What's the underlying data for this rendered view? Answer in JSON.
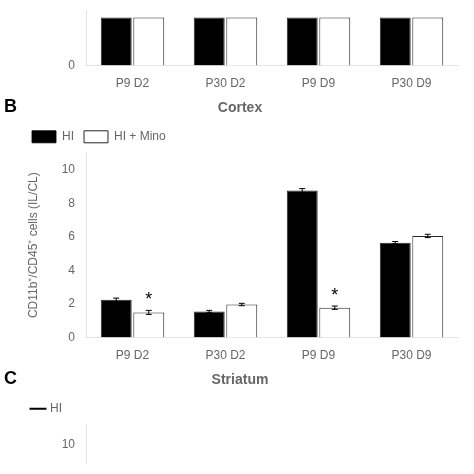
{
  "chart_data": [
    {
      "type": "bar",
      "categories": [
        "P9 D2",
        "P30 D2",
        "P9 D9",
        "P30 D9"
      ],
      "series": [
        {
          "color": "#000000",
          "values": [
            1.3,
            1.3,
            1.3,
            1.3
          ]
        },
        {
          "color": "#ffffff",
          "values": [
            1.3,
            1.3,
            1.3,
            1.3
          ]
        }
      ],
      "ylim": [
        0,
        1.5
      ],
      "yticks": [
        0
      ],
      "grid": false
    },
    {
      "type": "bar",
      "panel_label": "B",
      "title": "Cortex",
      "ylabel": "CD11b⁺/CD45⁺ cells (IL/CL)",
      "categories": [
        "P9 D2",
        "P30 D2",
        "P9 D9",
        "P30 D9"
      ],
      "series": [
        {
          "name": "HI",
          "color": "#000000",
          "values": [
            2.25,
            1.55,
            8.75,
            5.65
          ],
          "errors": [
            0.1,
            0.07,
            0.12,
            0.07
          ]
        },
        {
          "name": "HI + Mino",
          "color": "#ffffff",
          "values": [
            1.5,
            1.97,
            1.78,
            6.05
          ],
          "errors": [
            0.12,
            0.07,
            0.1,
            0.1
          ]
        }
      ],
      "ylim": [
        0,
        11
      ],
      "yticks": [
        0,
        2,
        4,
        6,
        8,
        10
      ],
      "grid": false,
      "legend": "upper left",
      "annotations": [
        {
          "text": "*",
          "series": "HI + Mino",
          "category": "P9 D2"
        },
        {
          "text": "*",
          "series": "HI + Mino",
          "category": "P9 D9"
        }
      ]
    },
    {
      "type": "line",
      "panel_label": "C",
      "title": "Striatum",
      "series": [
        {
          "name": "HI",
          "color": "#000000",
          "values": []
        }
      ],
      "ylim": [
        9,
        11
      ],
      "yticks": [
        10
      ],
      "grid": false,
      "legend": "upper left",
      "tick_labels": "y"
    }
  ]
}
